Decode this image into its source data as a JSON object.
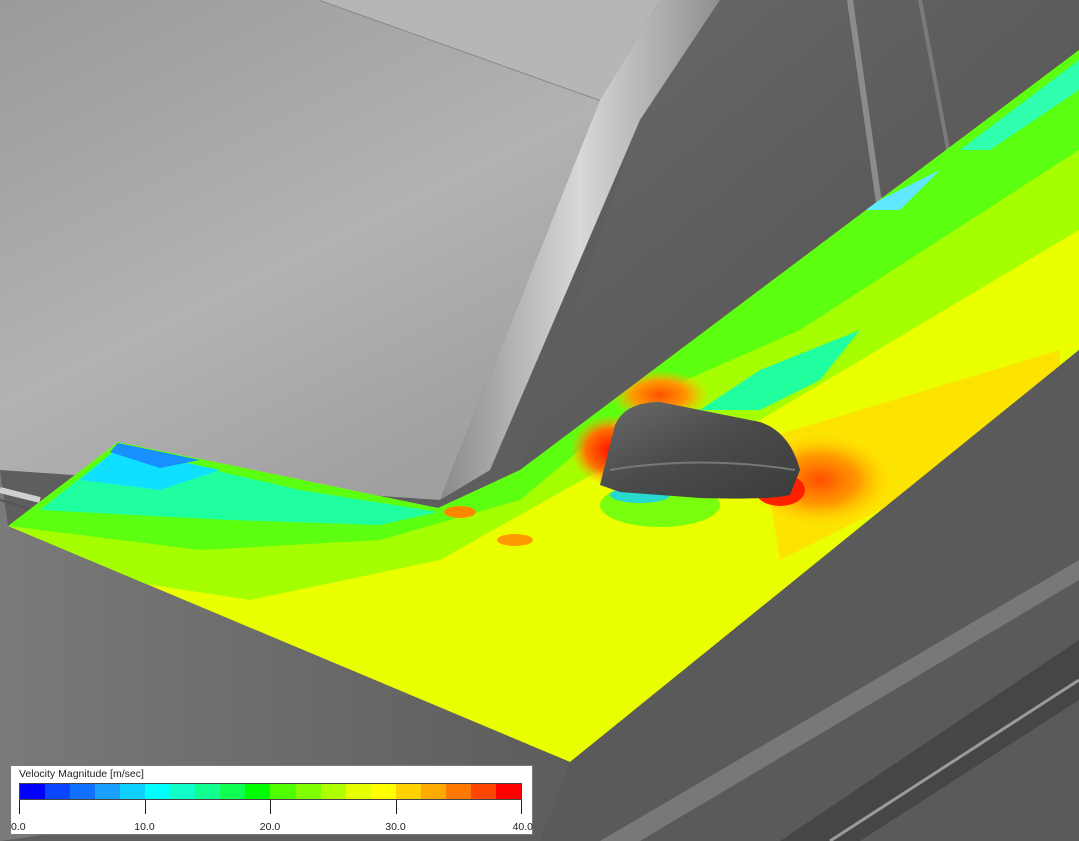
{
  "legend": {
    "title": "Velocity Magnitude [m/sec]",
    "min": 0,
    "max": 40,
    "tick_labels": [
      "0.0",
      "10.0",
      "20.0",
      "30.0",
      "40.0"
    ],
    "colors": [
      "#0000ff",
      "#0a46ff",
      "#1070ff",
      "#1aa0ff",
      "#10d0ff",
      "#00ffff",
      "#10ffc8",
      "#10ff90",
      "#10ff50",
      "#00ff00",
      "#50ff00",
      "#80ff00",
      "#b0ff00",
      "#e6ff00",
      "#ffff00",
      "#ffd200",
      "#ffaa00",
      "#ff7800",
      "#ff4600",
      "#ff0000"
    ]
  },
  "scene": {
    "description_colors": {
      "background_gray": "#5a5a5a",
      "body_light": "#a8a8a8",
      "mirror": "#4a4a4a"
    }
  }
}
